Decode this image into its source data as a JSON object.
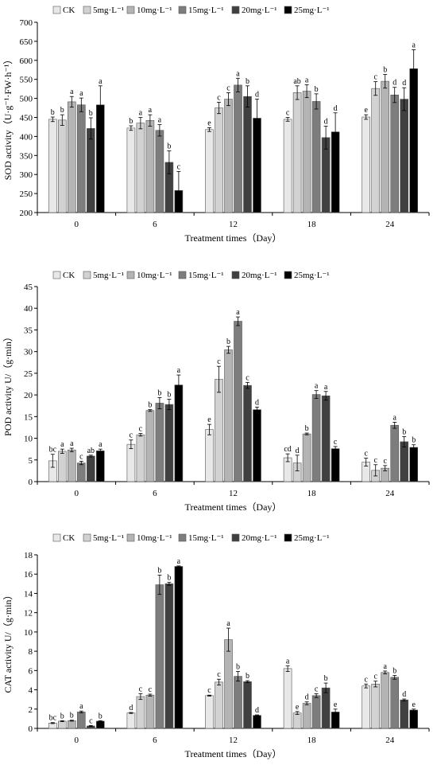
{
  "colors": {
    "series": [
      "#e8e8e8",
      "#d2d2d2",
      "#b4b4b4",
      "#7d7d7d",
      "#404040",
      "#000000"
    ],
    "axis": "#000000"
  },
  "chart_data": [
    {
      "type": "bar",
      "xlabel": "Treatment times（Day）",
      "ylabel": "SOD activity（U·g⁻¹·FW·h⁻¹）",
      "categories": [
        "0",
        "6",
        "12",
        "18",
        "24"
      ],
      "ylim": [
        200,
        700
      ],
      "yticks": [
        200,
        250,
        300,
        350,
        400,
        450,
        500,
        550,
        600,
        650,
        700
      ],
      "legend_position": "top-left",
      "grid": false,
      "series": [
        {
          "name": "CK",
          "values": [
            445,
            422,
            418,
            445,
            451
          ],
          "errors": [
            6,
            6,
            5,
            5,
            6
          ],
          "letters": [
            "b",
            "b",
            "e",
            "c",
            "e"
          ]
        },
        {
          "name": "5mg·L⁻¹",
          "values": [
            443,
            435,
            475,
            515,
            526
          ],
          "errors": [
            14,
            15,
            15,
            18,
            18
          ],
          "letters": [
            "b",
            "a",
            "c",
            "ab",
            "c"
          ]
        },
        {
          "name": "10mg·L⁻¹",
          "values": [
            491,
            442,
            498,
            519,
            545
          ],
          "errors": [
            14,
            15,
            17,
            17,
            18
          ],
          "letters": [
            "a",
            "a",
            "c",
            "a",
            "b"
          ]
        },
        {
          "name": "15mg·L⁻¹",
          "values": [
            483,
            416,
            535,
            492,
            509
          ],
          "errors": [
            18,
            15,
            18,
            20,
            20
          ],
          "letters": [
            "a",
            "a",
            "a",
            "b",
            "d"
          ]
        },
        {
          "name": "20mg·L⁻¹",
          "values": [
            421,
            332,
            505,
            397,
            498
          ],
          "errors": [
            28,
            30,
            28,
            30,
            30
          ],
          "letters": [
            "b",
            "b",
            "b",
            "d",
            "d"
          ]
        },
        {
          "name": "25mg·L⁻¹",
          "values": [
            483,
            258,
            448,
            412,
            578
          ],
          "errors": [
            50,
            50,
            50,
            50,
            50
          ],
          "letters": [
            "a",
            "c",
            "d",
            "d",
            "a"
          ]
        }
      ]
    },
    {
      "type": "bar",
      "xlabel": "Treatment times（Day）",
      "ylabel": "POD activity U/（g·min）",
      "categories": [
        "0",
        "6",
        "12",
        "18",
        "24"
      ],
      "ylim": [
        0,
        45
      ],
      "yticks": [
        0,
        5,
        10,
        15,
        20,
        25,
        30,
        35,
        40,
        45
      ],
      "legend_position": "top-left",
      "grid": false,
      "series": [
        {
          "name": "CK",
          "values": [
            4.8,
            8.6,
            12.0,
            5.5,
            4.5
          ],
          "errors": [
            1.5,
            1.0,
            1.2,
            0.9,
            0.9
          ],
          "letters": [
            "bc",
            "c",
            "e",
            "cd",
            "c"
          ]
        },
        {
          "name": "5mg·L⁻¹",
          "values": [
            7.0,
            10.8,
            23.6,
            4.3,
            2.6
          ],
          "errors": [
            0.5,
            0.3,
            3.0,
            1.8,
            1.3
          ],
          "letters": [
            "a",
            "c",
            "c",
            "d",
            "c"
          ]
        },
        {
          "name": "10mg·L⁻¹",
          "values": [
            7.3,
            16.4,
            30.4,
            11.0,
            3.1
          ],
          "errors": [
            0.4,
            0.2,
            0.8,
            0.2,
            0.6
          ],
          "letters": [
            "a",
            "b",
            "b",
            "b",
            "c"
          ]
        },
        {
          "name": "15mg·L⁻¹",
          "values": [
            4.3,
            18.1,
            37.0,
            20.1,
            13.0
          ],
          "errors": [
            0.4,
            1.3,
            1.0,
            0.9,
            0.7
          ],
          "letters": [
            "c",
            "b",
            "a",
            "a",
            "a"
          ]
        },
        {
          "name": "20mg·L⁻¹",
          "values": [
            5.9,
            17.8,
            22.2,
            19.8,
            9.2
          ],
          "errors": [
            0.2,
            1.2,
            0.7,
            1.0,
            1.2
          ],
          "letters": [
            "ab",
            "b",
            "c",
            "a",
            "b"
          ]
        },
        {
          "name": "25mg·L⁻¹",
          "values": [
            7.1,
            22.3,
            16.6,
            7.6,
            7.9
          ],
          "errors": [
            0.4,
            2.3,
            0.6,
            0.5,
            0.6
          ],
          "letters": [
            "a",
            "a",
            "d",
            "c",
            "b"
          ]
        }
      ]
    },
    {
      "type": "bar",
      "xlabel": "Treatment times（Day）",
      "ylabel": "CAT activity U/（g·min）",
      "categories": [
        "0",
        "6",
        "12",
        "18",
        "24"
      ],
      "ylim": [
        0,
        18
      ],
      "yticks": [
        0,
        2,
        4,
        6,
        8,
        10,
        12,
        14,
        16,
        18
      ],
      "legend_position": "top-left",
      "grid": false,
      "series": [
        {
          "name": "CK",
          "values": [
            0.55,
            1.6,
            3.4,
            6.2,
            4.4
          ],
          "errors": [
            0.05,
            0.05,
            0.05,
            0.3,
            0.2
          ],
          "letters": [
            "bc",
            "d",
            "c",
            "a",
            "c"
          ]
        },
        {
          "name": "5mg·L⁻¹",
          "values": [
            0.75,
            3.3,
            4.8,
            1.6,
            4.6
          ],
          "errors": [
            0.05,
            0.3,
            0.3,
            0.15,
            0.3
          ],
          "letters": [
            "b",
            "c",
            "c",
            "e",
            "c"
          ]
        },
        {
          "name": "10mg·L⁻¹",
          "values": [
            0.8,
            3.45,
            9.2,
            2.6,
            5.8
          ],
          "errors": [
            0.05,
            0.1,
            1.2,
            0.15,
            0.15
          ],
          "letters": [
            "b",
            "c",
            "a",
            "d",
            "a"
          ]
        },
        {
          "name": "15mg·L⁻¹",
          "values": [
            1.7,
            14.9,
            5.4,
            3.4,
            5.3
          ],
          "errors": [
            0.1,
            1.0,
            0.5,
            0.2,
            0.2
          ],
          "letters": [
            "a",
            "b",
            "b",
            "c",
            "b"
          ]
        },
        {
          "name": "20mg·L⁻¹",
          "values": [
            0.25,
            15.0,
            4.85,
            4.2,
            2.95
          ],
          "errors": [
            0.05,
            0.15,
            0.1,
            0.5,
            0.1
          ],
          "letters": [
            "c",
            "b",
            "b",
            "b",
            "d"
          ]
        },
        {
          "name": "25mg·L⁻¹",
          "values": [
            0.75,
            16.8,
            1.35,
            1.7,
            1.9
          ],
          "errors": [
            0.05,
            0.05,
            0.05,
            0.3,
            0.1
          ],
          "letters": [
            "b",
            "a",
            "d",
            "e",
            "e"
          ]
        }
      ]
    }
  ]
}
